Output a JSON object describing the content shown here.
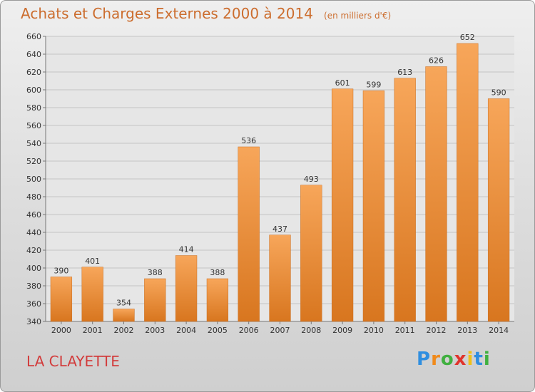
{
  "chart_data": {
    "type": "bar",
    "title": "Achats et Charges Externes 2000 à 2014",
    "subtitle": "(en milliers d'€)",
    "categories": [
      "2000",
      "2001",
      "2002",
      "2003",
      "2004",
      "2005",
      "2006",
      "2007",
      "2008",
      "2009",
      "2010",
      "2011",
      "2012",
      "2013",
      "2014"
    ],
    "values": [
      390,
      401,
      354,
      388,
      414,
      388,
      536,
      437,
      493,
      601,
      599,
      613,
      626,
      652,
      590
    ],
    "ylim": [
      340,
      660
    ],
    "yticks": [
      340,
      360,
      380,
      400,
      420,
      440,
      460,
      480,
      500,
      520,
      540,
      560,
      580,
      600,
      620,
      640,
      660
    ],
    "grid": true,
    "bar_color_top": "#f7a65a",
    "bar_color_bottom": "#d8761f"
  },
  "footer": {
    "label": "LA CLAYETTE"
  },
  "logo": {
    "letters": [
      "P",
      "r",
      "o",
      "x",
      "i",
      "t",
      "i"
    ],
    "colors": [
      "#2f8ee0",
      "#f08a1c",
      "#40b040",
      "#e0342c",
      "#f0c018",
      "#2f8ee0",
      "#40b040"
    ]
  }
}
